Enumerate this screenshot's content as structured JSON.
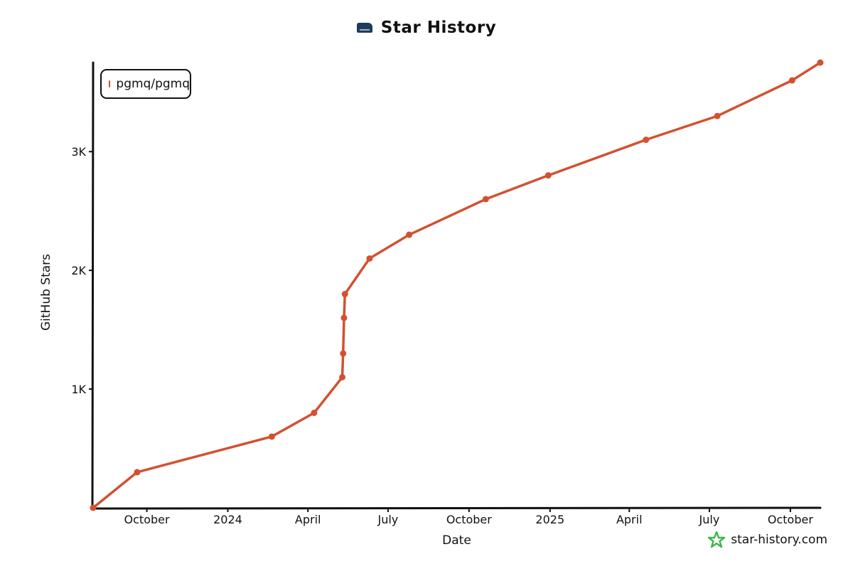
{
  "header": {
    "title": "Star History",
    "logo_icon": "pgmq-elephant-logo"
  },
  "footer": {
    "site": "star-history.com",
    "icon": "star-history-logo-icon"
  },
  "chart_data": {
    "type": "line",
    "title": "Star History",
    "xlabel": "Date",
    "ylabel": "GitHub Stars",
    "x_ticks": [
      "October",
      "2024",
      "April",
      "July",
      "October",
      "2025",
      "April",
      "July",
      "October"
    ],
    "x_tick_dates": [
      "2023-10-01",
      "2024-01-01",
      "2024-04-01",
      "2024-07-01",
      "2024-10-01",
      "2025-01-01",
      "2025-04-01",
      "2025-07-01",
      "2025-10-01"
    ],
    "y_ticks": [
      {
        "value": 1000,
        "label": "1K"
      },
      {
        "value": 2000,
        "label": "2K"
      },
      {
        "value": 3000,
        "label": "3K"
      }
    ],
    "xlim": [
      "2023-08-01",
      "2025-11-04"
    ],
    "ylim": [
      0,
      3750
    ],
    "legend_position": "top-left",
    "series": [
      {
        "name": "pgmq/pgmq",
        "color": "#d35131",
        "points": [
          {
            "x": "2023-08-01",
            "y": 0
          },
          {
            "x": "2023-09-20",
            "y": 300
          },
          {
            "x": "2024-02-20",
            "y": 600
          },
          {
            "x": "2024-04-08",
            "y": 800
          },
          {
            "x": "2024-05-10",
            "y": 1100
          },
          {
            "x": "2024-05-11",
            "y": 1300
          },
          {
            "x": "2024-05-12",
            "y": 1600
          },
          {
            "x": "2024-05-13",
            "y": 1800
          },
          {
            "x": "2024-06-10",
            "y": 2100
          },
          {
            "x": "2024-07-25",
            "y": 2300
          },
          {
            "x": "2024-10-20",
            "y": 2600
          },
          {
            "x": "2024-12-30",
            "y": 2800
          },
          {
            "x": "2025-04-20",
            "y": 3100
          },
          {
            "x": "2025-07-10",
            "y": 3300
          },
          {
            "x": "2025-10-03",
            "y": 3600
          },
          {
            "x": "2025-11-04",
            "y": 3750
          }
        ]
      }
    ]
  }
}
